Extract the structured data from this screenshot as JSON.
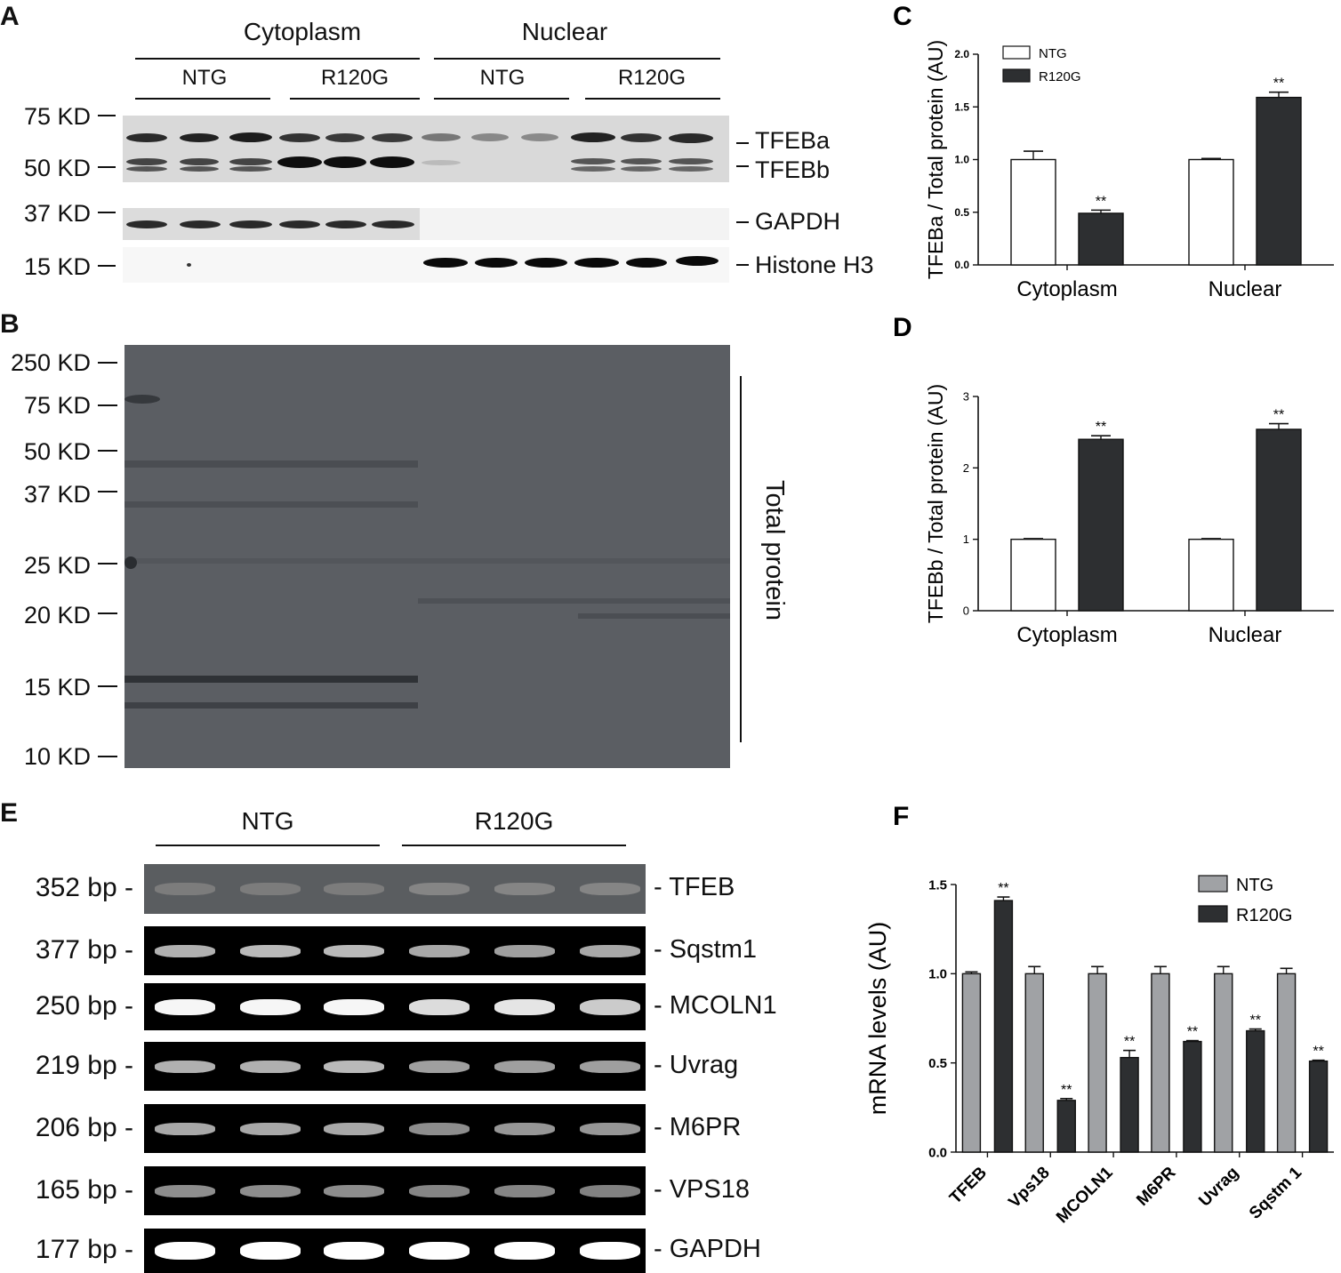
{
  "panelA": {
    "label": "A",
    "fractions": [
      "Cytoplasm",
      "Nuclear"
    ],
    "groups": [
      "NTG",
      "R120G",
      "NTG",
      "R120G"
    ],
    "mw": [
      "75 KD",
      "50 KD",
      "37 KD",
      "15 KD"
    ],
    "bands": [
      "TFEBa",
      "TFEBb",
      "GAPDH",
      "Histone H3"
    ]
  },
  "panelB": {
    "label": "B",
    "mw": [
      "250 KD",
      "75 KD",
      "50 KD",
      "37 KD",
      "25 KD",
      "20 KD",
      "15 KD",
      "10 KD"
    ],
    "side_label": "Total protein"
  },
  "panelE": {
    "label": "E",
    "groups": [
      "NTG",
      "R120G"
    ],
    "sizes": [
      "352 bp -",
      "377 bp -",
      "250 bp -",
      "219 bp -",
      "206 bp -",
      "165 bp -",
      "177 bp -"
    ],
    "genes": [
      "- TFEB",
      "- Sqstm1",
      "- MCOLN1",
      "- Uvrag",
      "- M6PR",
      "- VPS18",
      "- GAPDH"
    ]
  },
  "chart_data": [
    {
      "panel": "C",
      "type": "bar",
      "categories": [
        "Cytoplasm",
        "Nuclear"
      ],
      "series": [
        {
          "name": "NTG",
          "values": [
            1.0,
            1.0
          ],
          "errors": [
            0.08,
            0.01
          ],
          "color": "#ffffff"
        },
        {
          "name": "R120G",
          "values": [
            0.49,
            1.59
          ],
          "errors": [
            0.03,
            0.05
          ],
          "color": "#2d2f31"
        }
      ],
      "significance": [
        "**",
        "**"
      ],
      "ylabel": "TFEBa / Total protein (AU)",
      "ylim": [
        0,
        2.0
      ],
      "yticks": [
        "0.0",
        "0.5",
        "1.0",
        "1.5",
        "2.0"
      ],
      "legend": "top-left"
    },
    {
      "panel": "D",
      "type": "bar",
      "categories": [
        "Cytoplasm",
        "Nuclear"
      ],
      "series": [
        {
          "name": "NTG",
          "values": [
            1.0,
            1.0
          ],
          "errors": [
            0.01,
            0.01
          ],
          "color": "#ffffff"
        },
        {
          "name": "R120G",
          "values": [
            2.4,
            2.54
          ],
          "errors": [
            0.05,
            0.08
          ],
          "color": "#2d2f31"
        }
      ],
      "significance": [
        "**",
        "**"
      ],
      "ylabel": "TFEBb / Total protein (AU)",
      "ylim": [
        0,
        3
      ],
      "yticks": [
        "0",
        "1",
        "2",
        "3"
      ]
    },
    {
      "panel": "F",
      "type": "bar",
      "categories": [
        "TFEB",
        "Vps18",
        "MCOLN1",
        "M6PR",
        "Uvrag",
        "Sqstm 1"
      ],
      "series": [
        {
          "name": "NTG",
          "values": [
            1.0,
            1.0,
            1.0,
            1.0,
            1.0,
            1.0
          ],
          "errors": [
            0.01,
            0.04,
            0.04,
            0.04,
            0.04,
            0.03
          ],
          "color": "#a0a2a5"
        },
        {
          "name": "R120G",
          "values": [
            1.41,
            0.29,
            0.53,
            0.62,
            0.68,
            0.51
          ],
          "errors": [
            0.02,
            0.01,
            0.04,
            0.005,
            0.01,
            0.005
          ],
          "color": "#2d2f31"
        }
      ],
      "significance": [
        "**",
        "**",
        "**",
        "**",
        "**",
        "**"
      ],
      "ylabel": "mRNA levels (AU)",
      "ylim": [
        0,
        1.5
      ],
      "yticks": [
        "0.0",
        "0.5",
        "1.0",
        "1.5"
      ],
      "legend": "top-right"
    }
  ],
  "labels": {
    "C": "C",
    "D": "D",
    "F": "F"
  }
}
